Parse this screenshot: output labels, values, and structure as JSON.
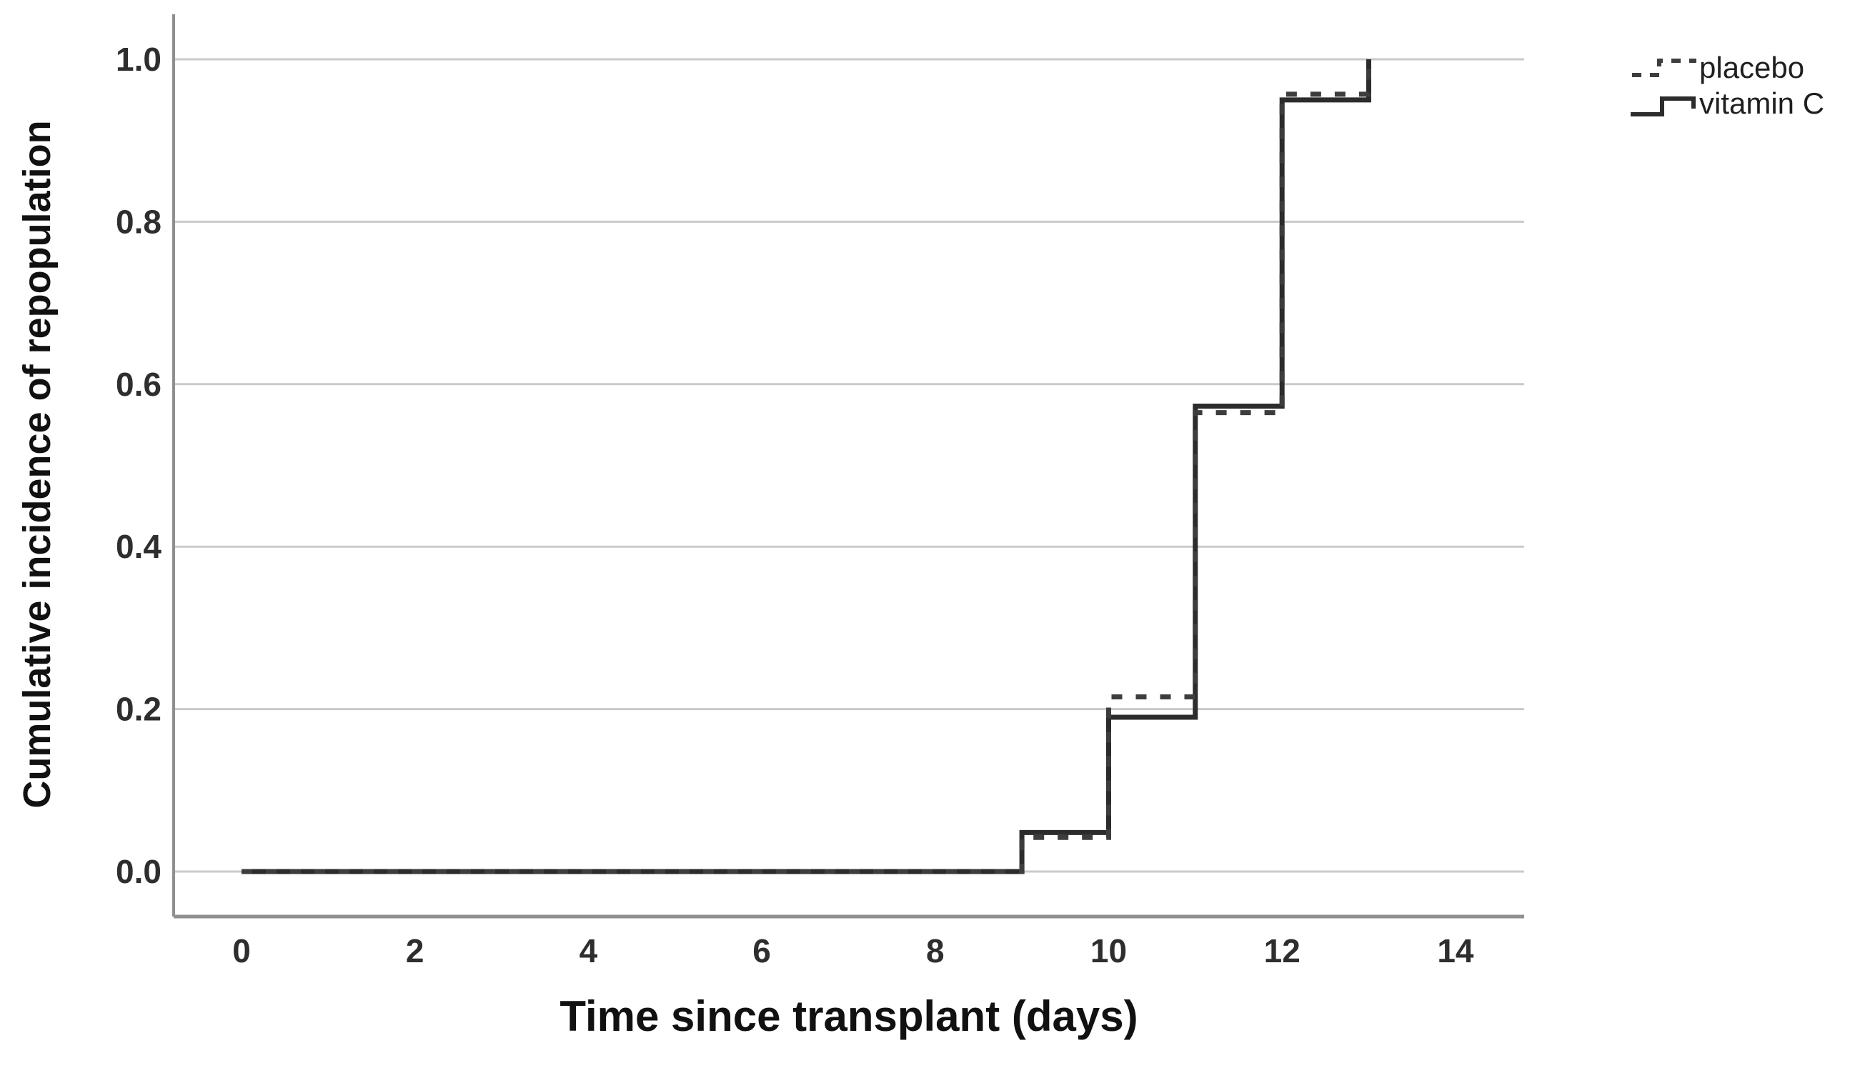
{
  "chart_data": {
    "type": "line",
    "subtype": "step",
    "title": "",
    "xlabel": "Time since transplant (days)",
    "ylabel": "Cumulative incidence of repopulation",
    "xlim": [
      -0.78,
      14.8
    ],
    "ylim": [
      -0.055,
      1.055
    ],
    "x_ticks": [
      "0",
      "2",
      "4",
      "6",
      "8",
      "10",
      "12",
      "14"
    ],
    "x_tick_values": [
      0,
      2,
      4,
      6,
      8,
      10,
      12,
      14
    ],
    "y_ticks": [
      "0.0",
      "0.2",
      "0.4",
      "0.6",
      "0.8",
      "1.0"
    ],
    "y_tick_values": [
      0.0,
      0.2,
      0.4,
      0.6,
      0.8,
      1.0
    ],
    "grid": "horizontal",
    "legend_position": "top-right-outside",
    "series": [
      {
        "name": "placebo",
        "style": "dashed",
        "color": "#3d3d3d",
        "step_points": [
          [
            0,
            0
          ],
          [
            9,
            0
          ],
          [
            9,
            0.042
          ],
          [
            10,
            0.042
          ],
          [
            10,
            0.215
          ],
          [
            11,
            0.215
          ],
          [
            11,
            0.565
          ],
          [
            12,
            0.565
          ],
          [
            12,
            0.957
          ],
          [
            13,
            0.957
          ],
          [
            13,
            1.0
          ]
        ]
      },
      {
        "name": "vitamin C",
        "style": "solid",
        "color": "#2c2c2c",
        "step_points": [
          [
            0,
            0
          ],
          [
            9,
            0
          ],
          [
            9,
            0.048
          ],
          [
            10,
            0.048
          ],
          [
            10,
            0.19
          ],
          [
            11,
            0.19
          ],
          [
            11,
            0.573
          ],
          [
            12,
            0.573
          ],
          [
            12,
            0.95
          ],
          [
            13,
            0.95
          ],
          [
            13,
            1.0
          ]
        ]
      }
    ]
  },
  "legend": {
    "items": [
      {
        "label": "placebo",
        "style": "dashed",
        "symbol": "dashed-step-line"
      },
      {
        "label": "vitamin C",
        "style": "solid",
        "symbol": "solid-step-line"
      }
    ]
  },
  "colors": {
    "background": "#ffffff",
    "gridline": "#cacaca",
    "axis": "#8f8f8f",
    "tick_text": "#2e2e2e",
    "title_text": "#111111",
    "placebo_line": "#3d3d3d",
    "vitamin_c_line": "#2c2c2c"
  }
}
